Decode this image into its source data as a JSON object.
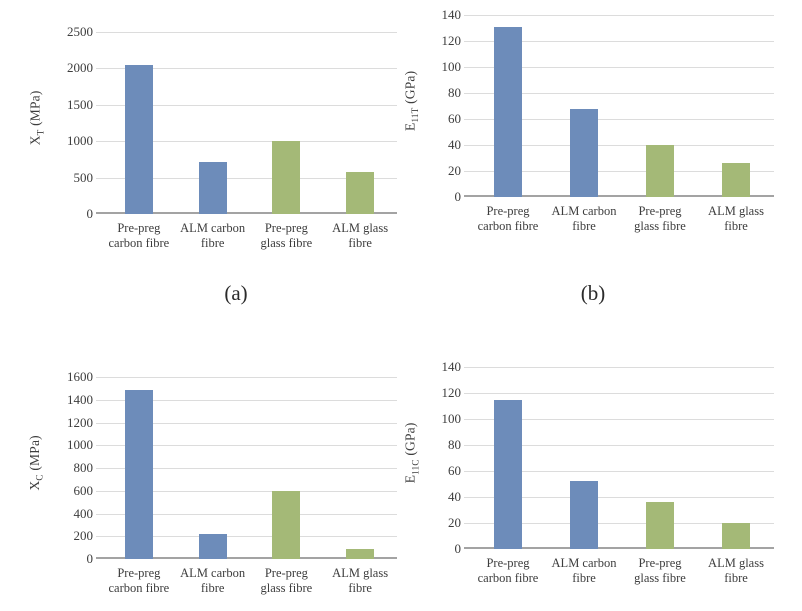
{
  "figure": {
    "captions": {
      "a": "(a)",
      "b": "(b)"
    }
  },
  "palette": {
    "blue": "#6d8cba",
    "green": "#a4b977"
  },
  "chart_data": [
    {
      "id": "a",
      "type": "bar",
      "caption": "(a)",
      "title": "",
      "xlabel": "",
      "ylabel": {
        "base": "X",
        "sub": "T",
        "unit": "(MPa)"
      },
      "ylabel_text": "XT (MPa)",
      "categories": [
        "Pre-preg\ncarbon fibre",
        "ALM carbon\nfibre",
        "Pre-preg\nglass fibre",
        "ALM glass\nfibre"
      ],
      "values": [
        2050,
        710,
        1000,
        580
      ],
      "ylim": [
        0,
        2500
      ],
      "ytick_step": 500,
      "grid": true,
      "legend_position": "none",
      "bar_colors": [
        "#6d8cba",
        "#6d8cba",
        "#a4b977",
        "#a4b977"
      ]
    },
    {
      "id": "b",
      "type": "bar",
      "caption": "(b)",
      "title": "",
      "xlabel": "",
      "ylabel": {
        "base": "E",
        "sub": "11T",
        "unit": "(GPa)"
      },
      "ylabel_text": "E11T (GPa)",
      "categories": [
        "Pre-preg\ncarbon fibre",
        "ALM carbon\nfibre",
        "Pre-preg\nglass fibre",
        "ALM glass\nfibre"
      ],
      "values": [
        131,
        68,
        40,
        26
      ],
      "ylim": [
        0,
        140
      ],
      "ytick_step": 20,
      "grid": true,
      "legend_position": "none",
      "bar_colors": [
        "#6d8cba",
        "#6d8cba",
        "#a4b977",
        "#a4b977"
      ]
    },
    {
      "id": "c",
      "type": "bar",
      "caption": null,
      "title": "",
      "xlabel": "",
      "ylabel": {
        "base": "X",
        "sub": "C",
        "unit": "(MPa)"
      },
      "ylabel_text": "XC (MPa)",
      "categories": [
        "Pre-preg\ncarbon fibre",
        "ALM carbon\nfibre",
        "Pre-preg\nglass fibre",
        "ALM glass\nfibre"
      ],
      "values": [
        1490,
        220,
        600,
        90
      ],
      "ylim": [
        0,
        1600
      ],
      "ytick_step": 200,
      "grid": true,
      "legend_position": "none",
      "bar_colors": [
        "#6d8cba",
        "#6d8cba",
        "#a4b977",
        "#a4b977"
      ]
    },
    {
      "id": "d",
      "type": "bar",
      "caption": null,
      "title": "",
      "xlabel": "",
      "ylabel": {
        "base": "E",
        "sub": "11C",
        "unit": "(GPa)"
      },
      "ylabel_text": "E11C (GPa)",
      "categories": [
        "Pre-preg\ncarbon fibre",
        "ALM carbon\nfibre",
        "Pre-preg\nglass fibre",
        "ALM glass\nfibre"
      ],
      "values": [
        115,
        52,
        36,
        20
      ],
      "ylim": [
        0,
        140
      ],
      "ytick_step": 20,
      "grid": true,
      "legend_position": "none",
      "bar_colors": [
        "#6d8cba",
        "#6d8cba",
        "#a4b977",
        "#a4b977"
      ]
    }
  ]
}
